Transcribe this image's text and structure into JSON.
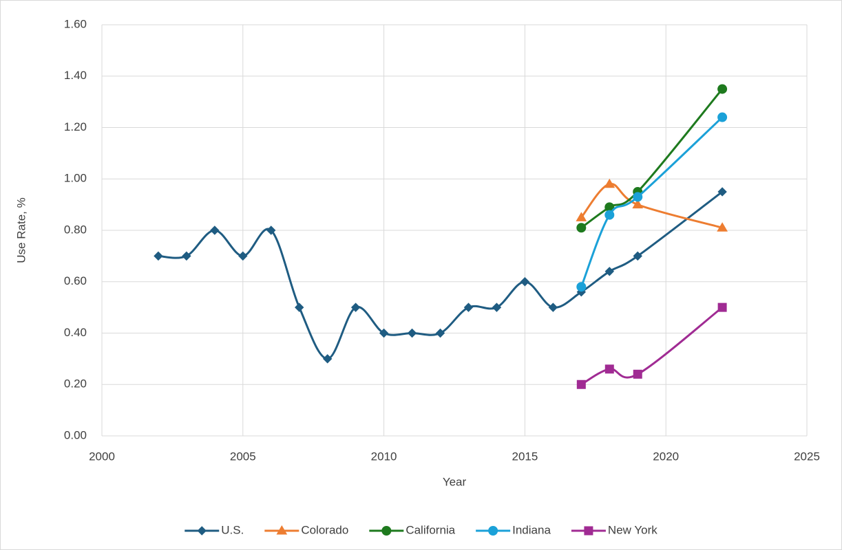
{
  "chart_data": {
    "type": "scatter",
    "smooth": true,
    "xlabel": "Year",
    "ylabel": "Use Rate, %",
    "xlim": [
      2000,
      2025
    ],
    "xticks": [
      2000,
      2005,
      2010,
      2015,
      2020,
      2025
    ],
    "ylim": [
      0,
      1.6
    ],
    "yticks": [
      {
        "value": 0,
        "label": "0.00"
      },
      {
        "value": 0.2,
        "label": "0.20"
      },
      {
        "value": 0.4,
        "label": "0.40"
      },
      {
        "value": 0.6,
        "label": "0.60"
      },
      {
        "value": 0.8,
        "label": "0.80"
      },
      {
        "value": 1.0,
        "label": "1.00"
      },
      {
        "value": 1.2,
        "label": "1.20"
      },
      {
        "value": 1.4,
        "label": "1.40"
      },
      {
        "value": 1.6,
        "label": "1.60"
      }
    ],
    "grid": true,
    "legend": "bottom",
    "series": [
      {
        "name": "U.S.",
        "color": "#1f5c82",
        "marker": "diamond",
        "x": [
          2002,
          2003,
          2004,
          2005,
          2006,
          2007,
          2008,
          2009,
          2010,
          2011,
          2012,
          2013,
          2014,
          2015,
          2016,
          2017,
          2018,
          2019,
          2022
        ],
        "values": [
          0.7,
          0.7,
          0.8,
          0.7,
          0.8,
          0.5,
          0.3,
          0.5,
          0.4,
          0.4,
          0.4,
          0.5,
          0.5,
          0.6,
          0.5,
          0.56,
          0.64,
          0.7,
          0.95
        ]
      },
      {
        "name": "Colorado",
        "color": "#ed7d31",
        "marker": "triangle",
        "x": [
          2017,
          2018,
          2019,
          2022
        ],
        "values": [
          0.85,
          0.98,
          0.9,
          0.81
        ]
      },
      {
        "name": "California",
        "color": "#1e7a1e",
        "marker": "circle",
        "x": [
          2017,
          2018,
          2019,
          2022
        ],
        "values": [
          0.81,
          0.89,
          0.95,
          1.35
        ]
      },
      {
        "name": "Indiana",
        "color": "#1ba1d8",
        "marker": "circle",
        "x": [
          2017,
          2018,
          2019,
          2022
        ],
        "values": [
          0.58,
          0.86,
          0.93,
          1.24
        ]
      },
      {
        "name": "New York",
        "color": "#a02b93",
        "marker": "square",
        "x": [
          2017,
          2018,
          2019,
          2022
        ],
        "values": [
          0.2,
          0.26,
          0.24,
          0.5
        ]
      }
    ]
  }
}
